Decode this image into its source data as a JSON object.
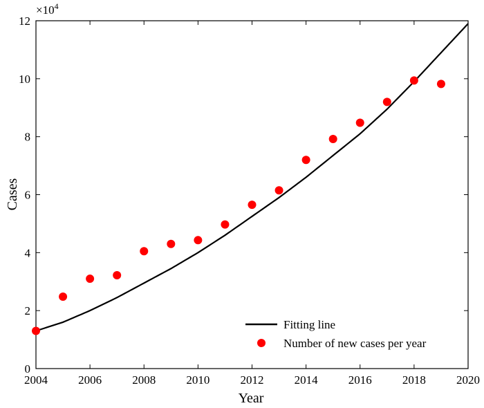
{
  "chart_data": {
    "type": "scatter",
    "xlabel": "Year",
    "ylabel": "Cases",
    "y_multiplier": {
      "base": "×10",
      "exponent": "4"
    },
    "xlim": [
      2004,
      2020
    ],
    "ylim": [
      0,
      120000
    ],
    "xticks": [
      2004,
      2006,
      2008,
      2010,
      2012,
      2014,
      2016,
      2018,
      2020
    ],
    "yticks": [
      0,
      20000,
      40000,
      60000,
      80000,
      100000,
      120000
    ],
    "ytick_labels": [
      "0",
      "2",
      "4",
      "6",
      "8",
      "10",
      "12"
    ],
    "grid": false,
    "legend_position": "bottom-right",
    "colors": {
      "points": "#ff0000",
      "line": "#000000"
    },
    "series": [
      {
        "name": "Number of new cases per year",
        "kind": "scatter",
        "x": [
          2004,
          2005,
          2006,
          2007,
          2008,
          2009,
          2010,
          2011,
          2012,
          2013,
          2014,
          2015,
          2016,
          2017,
          2018,
          2019
        ],
        "y": [
          13000,
          24800,
          31000,
          32200,
          40500,
          43000,
          44300,
          49700,
          56500,
          61500,
          72000,
          79200,
          84800,
          92000,
          99400,
          98200
        ]
      },
      {
        "name": "Fitting line",
        "kind": "line",
        "x": [
          2004,
          2005,
          2006,
          2007,
          2008,
          2009,
          2010,
          2011,
          2012,
          2013,
          2014,
          2015,
          2016,
          2017,
          2018,
          2019,
          2020
        ],
        "y": [
          13000,
          16000,
          20000,
          24500,
          29500,
          34500,
          40000,
          46000,
          52500,
          59000,
          66000,
          73500,
          81000,
          89500,
          99000,
          109000,
          119000
        ]
      }
    ]
  }
}
